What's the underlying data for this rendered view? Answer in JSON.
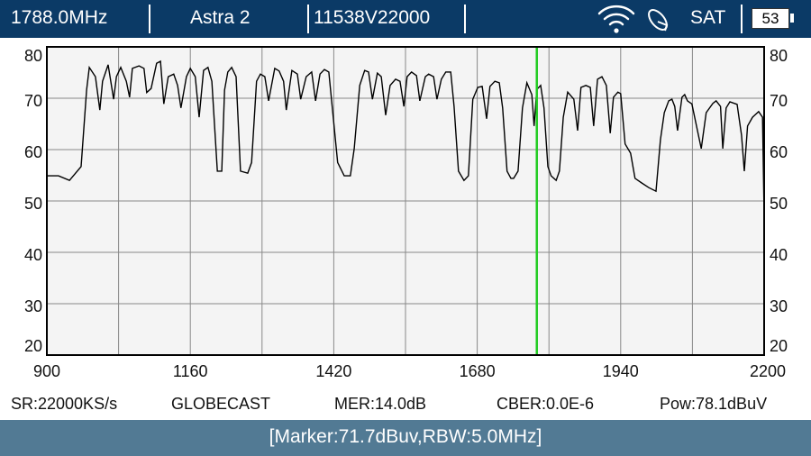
{
  "header": {
    "frequency": "1788.0MHz",
    "satellite": "Astra 2",
    "transponder": "11538V22000",
    "mode": "SAT",
    "battery": "53",
    "icons": [
      "wifi-icon",
      "satellite-dish-icon",
      "battery-icon"
    ]
  },
  "info": {
    "symbol_rate": "SR:22000KS/s",
    "provider": "GLOBECAST",
    "mer": "MER:14.0dB",
    "cber": "CBER:0.0E-6",
    "power": "Pow:78.1dBuV"
  },
  "status": "[Marker:71.7dBuv,RBW:5.0MHz]",
  "colors": {
    "header_bg": "#0b3a66",
    "status_bg": "#527a94",
    "marker": "#22cc22",
    "trace": "#000000",
    "plot_bg": "#f4f4f4"
  },
  "chart_data": {
    "type": "line",
    "xlim": [
      900,
      2200
    ],
    "ylim": [
      20,
      80
    ],
    "x_ticks": [
      "900",
      "1160",
      "1420",
      "1680",
      "1940",
      "2200"
    ],
    "y_ticks": [
      "80",
      "70",
      "60",
      "50",
      "40",
      "30",
      "20"
    ],
    "x_grid_step": 130,
    "y_grid_step": 10,
    "grid": true,
    "marker": {
      "x": 1788,
      "y": 71.7
    },
    "points": [
      [
        900,
        54.9
      ],
      [
        921,
        54.9
      ],
      [
        941,
        54.0
      ],
      [
        962,
        56.7
      ],
      [
        972,
        71.6
      ],
      [
        977,
        76.0
      ],
      [
        988,
        74.2
      ],
      [
        996,
        67.7
      ],
      [
        1001,
        73.3
      ],
      [
        1011,
        76.5
      ],
      [
        1021,
        69.8
      ],
      [
        1026,
        74.2
      ],
      [
        1034,
        76.0
      ],
      [
        1044,
        73.3
      ],
      [
        1050,
        70.2
      ],
      [
        1055,
        75.8
      ],
      [
        1067,
        76.3
      ],
      [
        1076,
        75.8
      ],
      [
        1081,
        71.1
      ],
      [
        1089,
        71.9
      ],
      [
        1099,
        76.8
      ],
      [
        1106,
        77.2
      ],
      [
        1112,
        68.9
      ],
      [
        1120,
        74.2
      ],
      [
        1130,
        74.7
      ],
      [
        1137,
        72.5
      ],
      [
        1143,
        68.1
      ],
      [
        1153,
        74.2
      ],
      [
        1160,
        75.8
      ],
      [
        1169,
        74.2
      ],
      [
        1176,
        66.3
      ],
      [
        1184,
        75.4
      ],
      [
        1192,
        76.0
      ],
      [
        1199,
        73.3
      ],
      [
        1209,
        55.8
      ],
      [
        1217,
        55.8
      ],
      [
        1222,
        71.6
      ],
      [
        1228,
        75.1
      ],
      [
        1235,
        76.0
      ],
      [
        1243,
        74.2
      ],
      [
        1251,
        55.8
      ],
      [
        1264,
        55.4
      ],
      [
        1271,
        57.5
      ],
      [
        1280,
        73.3
      ],
      [
        1287,
        74.7
      ],
      [
        1295,
        74.2
      ],
      [
        1302,
        69.5
      ],
      [
        1313,
        75.8
      ],
      [
        1321,
        75.3
      ],
      [
        1329,
        73.3
      ],
      [
        1334,
        67.7
      ],
      [
        1344,
        75.4
      ],
      [
        1354,
        74.7
      ],
      [
        1360,
        69.8
      ],
      [
        1370,
        74.2
      ],
      [
        1380,
        75.1
      ],
      [
        1387,
        69.5
      ],
      [
        1395,
        74.7
      ],
      [
        1403,
        75.6
      ],
      [
        1411,
        75.1
      ],
      [
        1419,
        66.3
      ],
      [
        1427,
        57.5
      ],
      [
        1439,
        54.9
      ],
      [
        1450,
        54.9
      ],
      [
        1457,
        60.2
      ],
      [
        1467,
        72.5
      ],
      [
        1476,
        75.4
      ],
      [
        1483,
        75.1
      ],
      [
        1490,
        69.8
      ],
      [
        1499,
        74.9
      ],
      [
        1506,
        74.2
      ],
      [
        1514,
        66.7
      ],
      [
        1522,
        72.5
      ],
      [
        1532,
        73.7
      ],
      [
        1540,
        73.3
      ],
      [
        1547,
        68.4
      ],
      [
        1553,
        74.2
      ],
      [
        1561,
        75.1
      ],
      [
        1570,
        74.4
      ],
      [
        1576,
        69.5
      ],
      [
        1586,
        74.2
      ],
      [
        1592,
        74.7
      ],
      [
        1601,
        74.2
      ],
      [
        1607,
        69.8
      ],
      [
        1615,
        73.7
      ],
      [
        1623,
        75.1
      ],
      [
        1632,
        75.1
      ],
      [
        1638,
        68.4
      ],
      [
        1646,
        55.8
      ],
      [
        1656,
        54.0
      ],
      [
        1664,
        54.9
      ],
      [
        1672,
        69.8
      ],
      [
        1681,
        72.1
      ],
      [
        1689,
        72.3
      ],
      [
        1697,
        66.0
      ],
      [
        1703,
        72.3
      ],
      [
        1712,
        73.3
      ],
      [
        1720,
        73.0
      ],
      [
        1726,
        68.1
      ],
      [
        1734,
        55.8
      ],
      [
        1741,
        54.4
      ],
      [
        1746,
        54.4
      ],
      [
        1754,
        55.8
      ],
      [
        1762,
        68.1
      ],
      [
        1770,
        73.0
      ],
      [
        1779,
        70.7
      ],
      [
        1783,
        64.6
      ],
      [
        1788,
        71.7
      ],
      [
        1795,
        72.5
      ],
      [
        1801,
        68.1
      ],
      [
        1808,
        56.7
      ],
      [
        1814,
        54.9
      ],
      [
        1823,
        54.0
      ],
      [
        1829,
        55.8
      ],
      [
        1836,
        66.3
      ],
      [
        1844,
        71.2
      ],
      [
        1855,
        69.8
      ],
      [
        1862,
        63.7
      ],
      [
        1868,
        72.1
      ],
      [
        1877,
        72.5
      ],
      [
        1885,
        72.1
      ],
      [
        1891,
        64.6
      ],
      [
        1898,
        73.7
      ],
      [
        1906,
        74.2
      ],
      [
        1914,
        72.5
      ],
      [
        1921,
        63.2
      ],
      [
        1927,
        70.2
      ],
      [
        1935,
        71.2
      ],
      [
        1940,
        70.9
      ],
      [
        1948,
        61.1
      ],
      [
        1958,
        59.3
      ],
      [
        1966,
        54.4
      ],
      [
        1978,
        53.5
      ],
      [
        1991,
        52.6
      ],
      [
        2004,
        51.9
      ],
      [
        2012,
        61.9
      ],
      [
        2019,
        67.2
      ],
      [
        2027,
        69.5
      ],
      [
        2033,
        69.8
      ],
      [
        2038,
        68.4
      ],
      [
        2043,
        63.7
      ],
      [
        2051,
        70.2
      ],
      [
        2056,
        70.7
      ],
      [
        2061,
        69.5
      ],
      [
        2069,
        68.9
      ],
      [
        2086,
        60.2
      ],
      [
        2095,
        67.2
      ],
      [
        2107,
        69.0
      ],
      [
        2113,
        69.5
      ],
      [
        2121,
        68.4
      ],
      [
        2125,
        60.2
      ],
      [
        2131,
        68.1
      ],
      [
        2138,
        69.3
      ],
      [
        2151,
        68.8
      ],
      [
        2159,
        62.8
      ],
      [
        2164,
        55.8
      ],
      [
        2170,
        64.6
      ],
      [
        2179,
        66.3
      ],
      [
        2190,
        67.4
      ],
      [
        2197,
        66.3
      ],
      [
        2200,
        47.0
      ]
    ]
  }
}
